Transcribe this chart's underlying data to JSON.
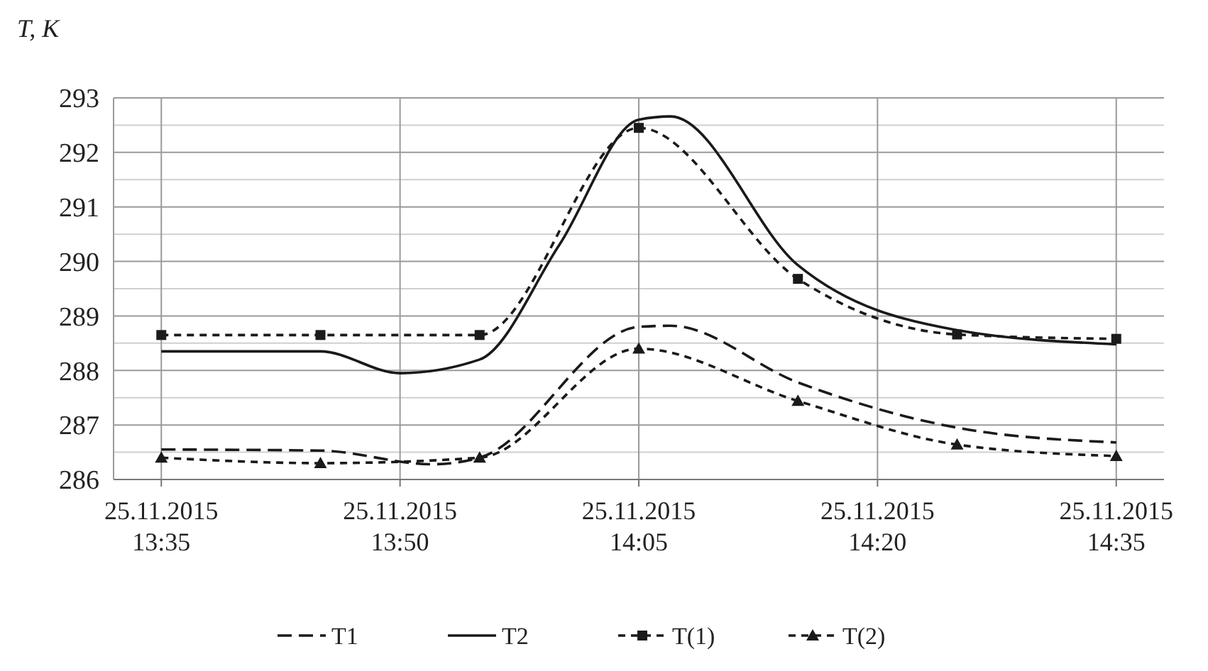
{
  "chart_data": {
    "type": "line",
    "ylabel": "T, K",
    "legend": "bottom",
    "grid": true,
    "xlim": [
      "2015-11-25T13:32",
      "2015-11-25T14:38"
    ],
    "xticks": [
      {
        "value": "2015-11-25T13:35",
        "label": "25.11.2015\n13:35"
      },
      {
        "value": "2015-11-25T13:50",
        "label": "25.11.2015\n13:50"
      },
      {
        "value": "2015-11-25T14:05",
        "label": "25.11.2015\n14:05"
      },
      {
        "value": "2015-11-25T14:20",
        "label": "25.11.2015\n14:20"
      },
      {
        "value": "2015-11-25T14:35",
        "label": "25.11.2015\n14:35"
      }
    ],
    "ylim": [
      286,
      293
    ],
    "yticks": [
      286,
      {
        "value": 286.5,
        "label": null
      },
      287,
      {
        "value": 287.5,
        "label": null
      },
      288,
      {
        "value": 288.5,
        "label": null
      },
      289,
      {
        "value": 289.5,
        "label": null
      },
      290,
      {
        "value": 290.5,
        "label": null
      },
      291,
      {
        "value": 291.5,
        "label": null
      },
      292,
      {
        "value": 292.5,
        "label": null
      },
      293
    ],
    "x": [
      "2015-11-25T13:35",
      "2015-11-25T13:45",
      "2015-11-25T13:55",
      "2015-11-25T14:05",
      "2015-11-25T14:15",
      "2015-11-25T14:25",
      "2015-11-25T14:35"
    ],
    "series": [
      {
        "name": "T1",
        "color": "#1a1a1a",
        "line_style": "dashed",
        "marker": "none",
        "x": [
          "2015-11-25T13:35",
          "2015-11-25T13:45",
          "2015-11-25T13:52",
          "2015-11-25T13:55",
          "2015-11-25T14:05",
          "2015-11-25T14:07",
          "2015-11-25T14:15",
          "2015-11-25T14:25",
          "2015-11-25T14:35"
        ],
        "values": [
          286.55,
          286.53,
          286.28,
          286.4,
          288.8,
          288.82,
          287.78,
          286.95,
          286.68
        ]
      },
      {
        "name": "T2",
        "color": "#1a1a1a",
        "line_style": "solid",
        "marker": "none",
        "x": [
          "2015-11-25T13:35",
          "2015-11-25T13:45",
          "2015-11-25T13:50",
          "2015-11-25T13:55",
          "2015-11-25T14:00",
          "2015-11-25T14:05",
          "2015-11-25T14:07",
          "2015-11-25T14:15",
          "2015-11-25T14:25",
          "2015-11-25T14:35"
        ],
        "values": [
          288.35,
          288.35,
          287.95,
          288.2,
          290.3,
          292.6,
          292.66,
          289.93,
          288.74,
          288.48
        ]
      },
      {
        "name": "T(1)",
        "color": "#1a1a1a",
        "line_style": "dotted",
        "marker": "square",
        "values": [
          288.65,
          288.65,
          288.65,
          292.45,
          289.68,
          288.66,
          288.58
        ]
      },
      {
        "name": "T(2)",
        "color": "#1a1a1a",
        "line_style": "dotted",
        "marker": "triangle",
        "values": [
          286.4,
          286.3,
          286.4,
          288.4,
          287.44,
          286.64,
          286.43
        ]
      }
    ]
  }
}
